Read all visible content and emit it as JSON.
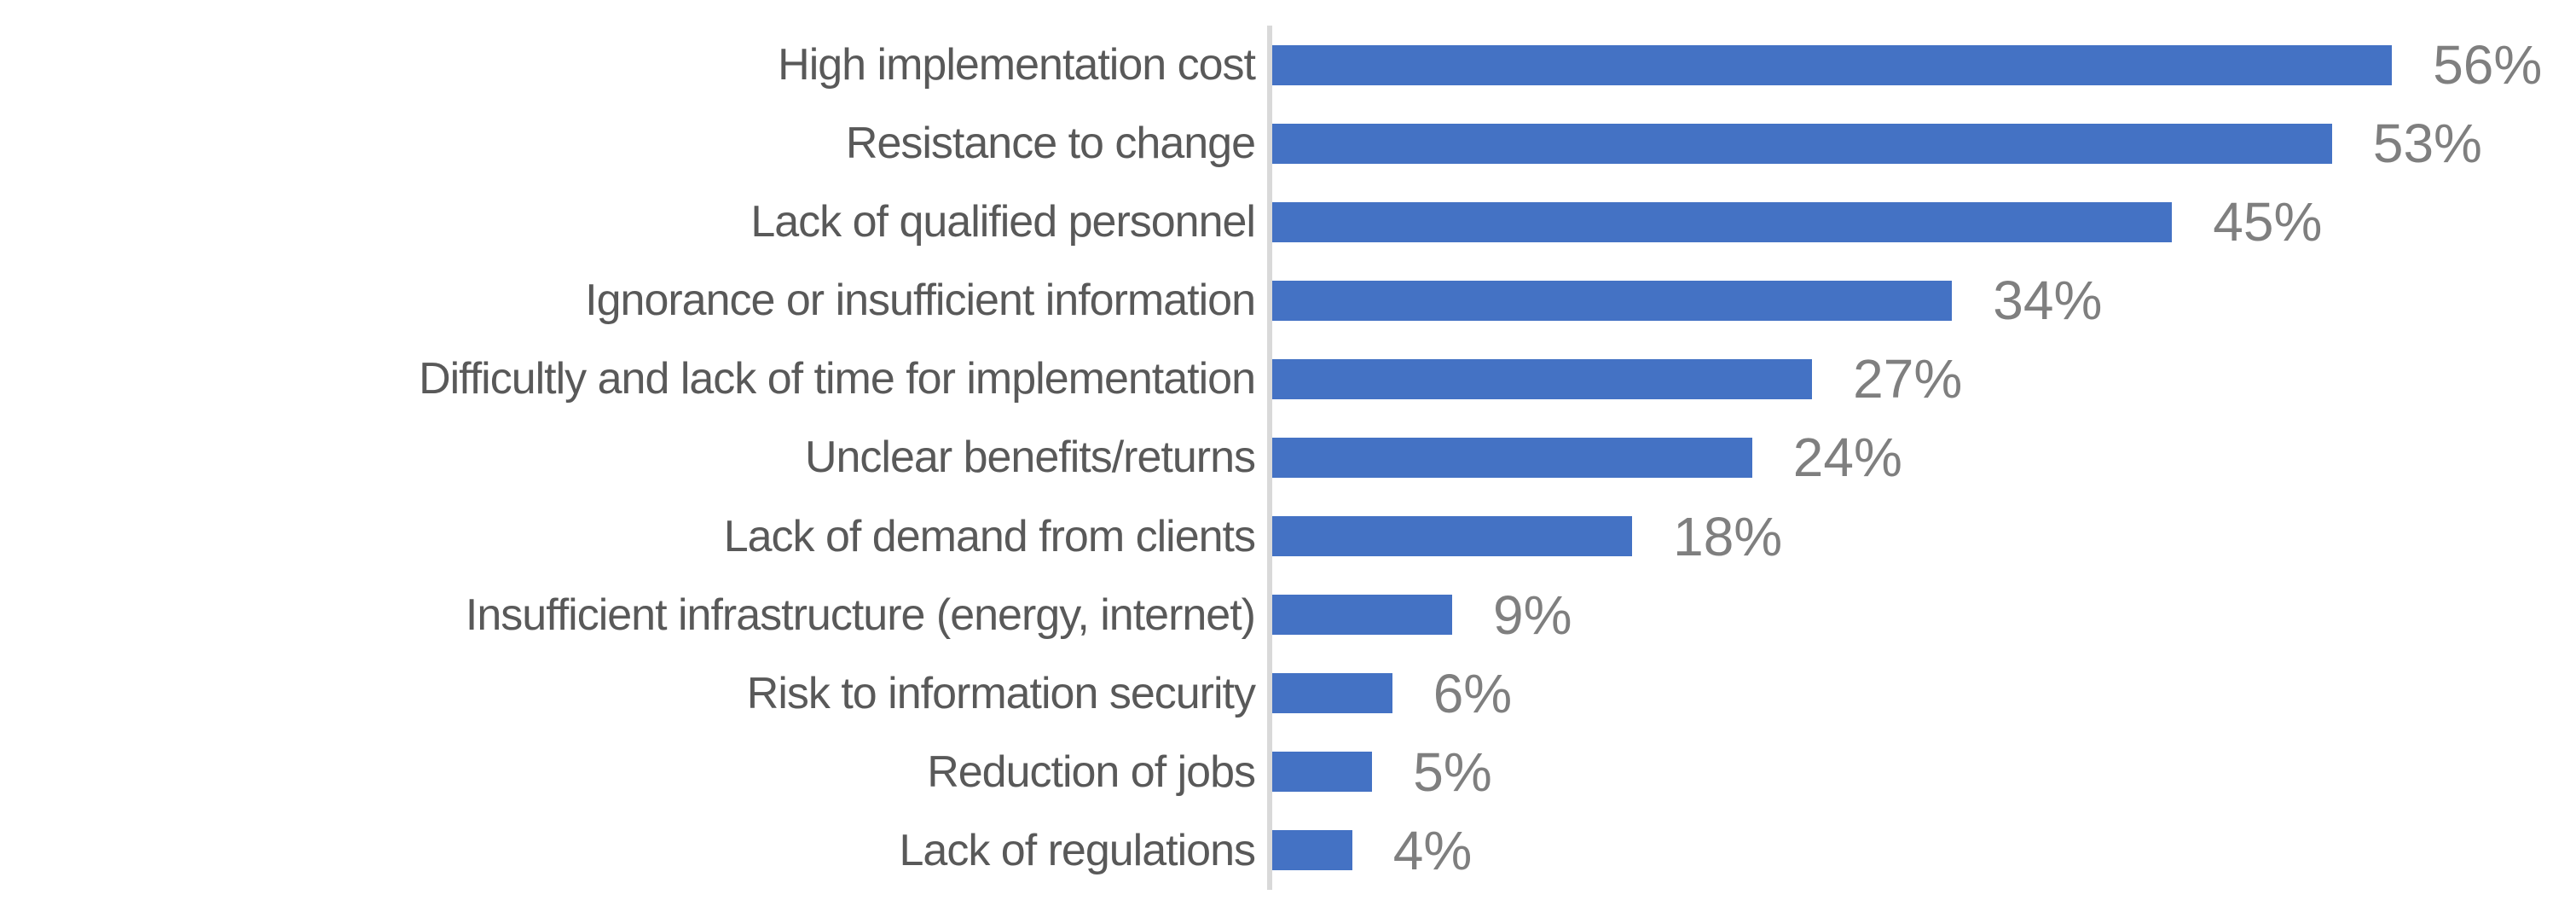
{
  "chart_data": {
    "type": "bar",
    "orientation": "horizontal",
    "title": "",
    "xlabel": "",
    "ylabel": "",
    "xlim": [
      0,
      60
    ],
    "grid": false,
    "legend_position": "none",
    "categories": [
      "High implementation cost",
      "Resistance to change",
      "Lack of qualified personnel",
      "Ignorance or insufficient information",
      "Difficultly and lack of time for implementation",
      "Unclear benefits/returns",
      "Lack of demand from clients",
      "Insufficient infrastructure (energy, internet)",
      "Risk to information security",
      "Reduction of jobs",
      "Lack of regulations"
    ],
    "values": [
      56,
      53,
      45,
      34,
      27,
      24,
      18,
      9,
      6,
      5,
      4
    ],
    "data_labels": [
      "56%",
      "53%",
      "45%",
      "34%",
      "27%",
      "24%",
      "18%",
      "9%",
      "6%",
      "5%",
      "4%"
    ],
    "colors": {
      "bar": "#4472C4",
      "axis_line": "#D9D9D9",
      "category_label": "#595959",
      "value_label": "#7F7F7F",
      "background": "#FFFFFF"
    }
  }
}
